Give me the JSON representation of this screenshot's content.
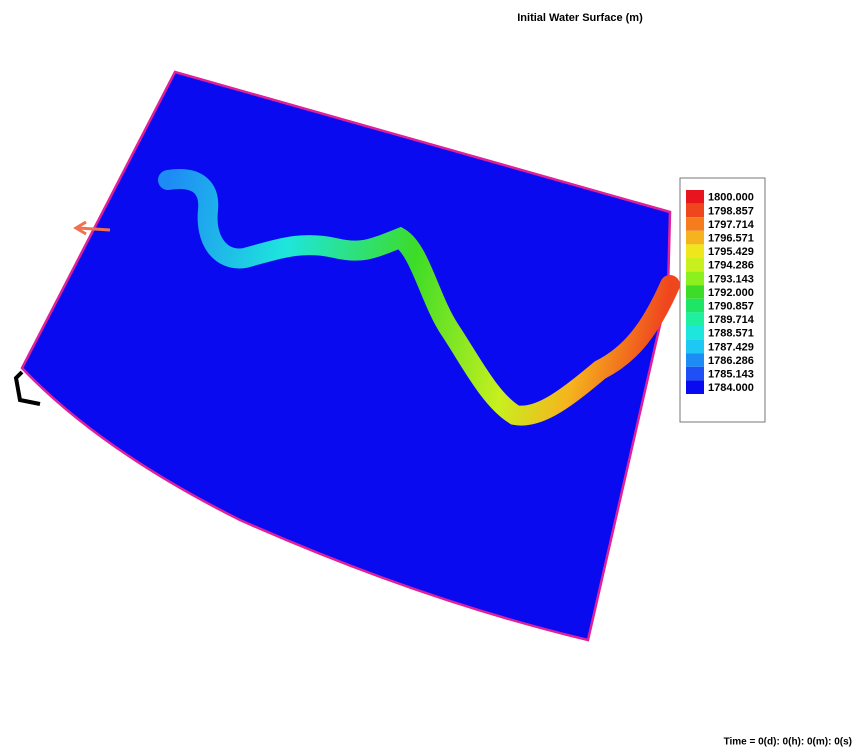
{
  "header": {
    "title": "Initial Water Surface (m)"
  },
  "legend": {
    "items": [
      {
        "label": "1800.000",
        "color": "#e8141e"
      },
      {
        "label": "1798.857",
        "color": "#f0461e"
      },
      {
        "label": "1797.714",
        "color": "#f57d1e"
      },
      {
        "label": "1796.571",
        "color": "#f5b41e"
      },
      {
        "label": "1795.429",
        "color": "#f0e61e"
      },
      {
        "label": "1794.286",
        "color": "#c8f01e"
      },
      {
        "label": "1793.143",
        "color": "#8cf01e"
      },
      {
        "label": "1792.000",
        "color": "#3cdc28"
      },
      {
        "label": "1790.857",
        "color": "#1ee664"
      },
      {
        "label": "1789.714",
        "color": "#1ef0a0"
      },
      {
        "label": "1788.571",
        "color": "#1ee6dc"
      },
      {
        "label": "1787.429",
        "color": "#1ec8f5"
      },
      {
        "label": "1786.286",
        "color": "#1e8cf5"
      },
      {
        "label": "1785.143",
        "color": "#1e50f5"
      },
      {
        "label": "1784.000",
        "color": "#0a0af0"
      }
    ]
  },
  "footer": {
    "time": "Time = 0(d): 0(h): 0(m): 0(s)"
  }
}
